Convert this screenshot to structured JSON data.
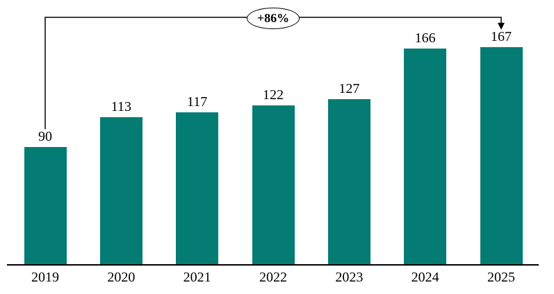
{
  "chart_data": {
    "type": "bar",
    "categories": [
      "2019",
      "2020",
      "2021",
      "2022",
      "2023",
      "2024",
      "2025"
    ],
    "values": [
      90,
      113,
      117,
      122,
      127,
      166,
      167
    ],
    "value_labels_shown": true,
    "grid": false,
    "legend": false,
    "bar_color": "#047c73",
    "axis_color": "#000000",
    "text_color": "#000000",
    "annotation": {
      "label": "+86%",
      "from_category": "2019",
      "to_category": "2025"
    }
  }
}
